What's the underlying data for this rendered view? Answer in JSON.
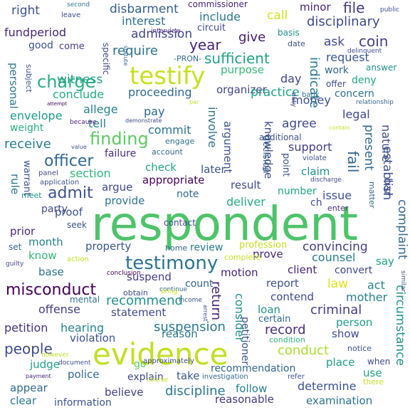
{
  "words": [
    {
      "text": "respondent",
      "color": "#4ec36a",
      "rotated": false
    },
    {
      "text": "evidence",
      "color": "#c2df23",
      "rotated": false
    },
    {
      "text": "testify",
      "color": "#c8e020",
      "rotated": false
    },
    {
      "text": "testimony",
      "color": "#2c728e",
      "rotated": false
    },
    {
      "text": "charge",
      "color": "#28ae80",
      "rotated": false
    },
    {
      "text": "finding",
      "color": "#5ec962",
      "rotated": false
    },
    {
      "text": "admit",
      "color": "#3b528b",
      "rotated": false
    },
    {
      "text": "officer",
      "color": "#31688e",
      "rotated": false
    },
    {
      "text": "misconduct",
      "color": "#440154",
      "rotated": false
    },
    {
      "text": "people",
      "color": "#3e4a89",
      "rotated": false
    },
    {
      "text": "petition",
      "color": "#46327e",
      "rotated": false
    },
    {
      "text": "hearing",
      "color": "#25848e",
      "rotated": false
    },
    {
      "text": "suspension",
      "color": "#2a788e",
      "rotated": false
    },
    {
      "text": "conduct",
      "color": "#addc30",
      "rotated": false
    },
    {
      "text": "recommend",
      "color": "#21918c",
      "rotated": false
    },
    {
      "text": "record",
      "color": "#472d7b",
      "rotated": false
    },
    {
      "text": "discipline",
      "color": "#2a788e",
      "rotated": false
    },
    {
      "text": "recommendation",
      "color": "#31688e",
      "rotated": false
    },
    {
      "text": "determine",
      "color": "#3b528b",
      "rotated": false
    },
    {
      "text": "criminal",
      "color": "#433e85",
      "rotated": false
    },
    {
      "text": "disbarment",
      "color": "#355f8d",
      "rotated": false
    },
    {
      "text": "disciplinary",
      "color": "#3e4a89",
      "rotated": false
    },
    {
      "text": "interest",
      "color": "#2c728e",
      "rotated": false
    },
    {
      "text": "include",
      "color": "#2a788e",
      "rotated": false
    },
    {
      "text": "file",
      "color": "#443a83",
      "rotated": false
    },
    {
      "text": "minor",
      "color": "#482576",
      "rotated": false
    },
    {
      "text": "right",
      "color": "#3b528b",
      "rotated": false
    },
    {
      "text": "call",
      "color": "#d2e21b",
      "rotated": false
    },
    {
      "text": "commissioner",
      "color": "#482173",
      "rotated": false
    },
    {
      "text": "fundperiod",
      "color": "#482576",
      "rotated": false
    },
    {
      "text": "admission",
      "color": "#404688",
      "rotated": false
    },
    {
      "text": "give",
      "color": "#481a6c",
      "rotated": false
    },
    {
      "text": "coin",
      "color": "#433e85",
      "rotated": false
    },
    {
      "text": "ask",
      "color": "#3e4a89",
      "rotated": false
    },
    {
      "text": "basis",
      "color": "#21918c",
      "rotated": false
    },
    {
      "text": "year",
      "color": "#482475",
      "rotated": false
    },
    {
      "text": "require",
      "color": "#2c728e",
      "rotated": false
    },
    {
      "text": "sufficient",
      "color": "#20a386",
      "rotated": false
    },
    {
      "text": "request",
      "color": "#39568c",
      "rotated": false
    },
    {
      "text": "purpose",
      "color": "#37b878",
      "rotated": false
    },
    {
      "text": "witness",
      "color": "#1fa187",
      "rotated": false
    },
    {
      "text": "conclude",
      "color": "#25ac82",
      "rotated": false
    },
    {
      "text": "proceeding",
      "color": "#31688e",
      "rotated": false
    },
    {
      "text": "organizer",
      "color": "#404688",
      "rotated": false
    },
    {
      "text": "concern",
      "color": "#2c728e",
      "rotated": false
    },
    {
      "text": "practice",
      "color": "#20a386",
      "rotated": false
    },
    {
      "text": "money",
      "color": "#3b528b",
      "rotated": false
    },
    {
      "text": "envelope",
      "color": "#1e9b8a",
      "rotated": false
    },
    {
      "text": "weight",
      "color": "#29af7f",
      "rotated": false
    },
    {
      "text": "allege",
      "color": "#26828e",
      "rotated": false
    },
    {
      "text": "pay",
      "color": "#31688e",
      "rotated": false
    },
    {
      "text": "tell",
      "color": "#26828e",
      "rotated": false
    },
    {
      "text": "agree",
      "color": "#3e4a89",
      "rotated": false
    },
    {
      "text": "legal",
      "color": "#3f4788",
      "rotated": false
    },
    {
      "text": "receive",
      "color": "#287d8e",
      "rotated": false
    },
    {
      "text": "commit",
      "color": "#2c728e",
      "rotated": false
    },
    {
      "text": "support",
      "color": "#433d84",
      "rotated": false
    },
    {
      "text": "section",
      "color": "#2fb47c",
      "rotated": false
    },
    {
      "text": "failure",
      "color": "#472d7b",
      "rotated": false
    },
    {
      "text": "check",
      "color": "#21a685",
      "rotated": false
    },
    {
      "text": "later",
      "color": "#3b528b",
      "rotated": false
    },
    {
      "text": "claim",
      "color": "#21918c",
      "rotated": false
    },
    {
      "text": "argue",
      "color": "#3e4a89",
      "rotated": false
    },
    {
      "text": "appropriate",
      "color": "#440154",
      "rotated": false
    },
    {
      "text": "result",
      "color": "#3e4a89",
      "rotated": false
    },
    {
      "text": "number",
      "color": "#22a884",
      "rotated": false
    },
    {
      "text": "issue",
      "color": "#3b528b",
      "rotated": false
    },
    {
      "text": "party",
      "color": "#3e4a89",
      "rotated": false
    },
    {
      "text": "provide",
      "color": "#2c728e",
      "rotated": false
    },
    {
      "text": "deliver",
      "color": "#25ab82",
      "rotated": false
    },
    {
      "text": "note",
      "color": "#31688e",
      "rotated": false
    },
    {
      "text": "proof",
      "color": "#3b528b",
      "rotated": false
    },
    {
      "text": "prior",
      "color": "#482878",
      "rotated": false
    },
    {
      "text": "month",
      "color": "#26828e",
      "rotated": false
    },
    {
      "text": "property",
      "color": "#39568c",
      "rotated": false
    },
    {
      "text": "review",
      "color": "#2a788e",
      "rotated": false
    },
    {
      "text": "convincing",
      "color": "#433e85",
      "rotated": false
    },
    {
      "text": "counsel",
      "color": "#287d8e",
      "rotated": false
    },
    {
      "text": "prove",
      "color": "#482576",
      "rotated": false
    },
    {
      "text": "know",
      "color": "#35b779",
      "rotated": false
    },
    {
      "text": "base",
      "color": "#2c728e",
      "rotated": false
    },
    {
      "text": "motion",
      "color": "#482576",
      "rotated": false
    },
    {
      "text": "client",
      "color": "#482173",
      "rotated": false
    },
    {
      "text": "convert",
      "color": "#3e4989",
      "rotated": false
    },
    {
      "text": "say",
      "color": "#1fa088",
      "rotated": false
    },
    {
      "text": "suspend",
      "color": "#443983",
      "rotated": false
    },
    {
      "text": "report",
      "color": "#3b528b",
      "rotated": false
    },
    {
      "text": "law",
      "color": "#dde318",
      "rotated": false
    },
    {
      "text": "act",
      "color": "#26828e",
      "rotated": false
    },
    {
      "text": "contend",
      "color": "#3e4a89",
      "rotated": false
    },
    {
      "text": "mother",
      "color": "#25838e",
      "rotated": false
    },
    {
      "text": "offense",
      "color": "#433e85",
      "rotated": false
    },
    {
      "text": "statement",
      "color": "#3f4788",
      "rotated": false
    },
    {
      "text": "loan",
      "color": "#21918c",
      "rotated": false
    },
    {
      "text": "reason",
      "color": "#2a788e",
      "rotated": false
    },
    {
      "text": "person",
      "color": "#1f9e89",
      "rotated": false
    },
    {
      "text": "show",
      "color": "#3e4a89",
      "rotated": false
    },
    {
      "text": "violation",
      "color": "#3b528b",
      "rotated": false
    },
    {
      "text": "judge",
      "color": "#1fa088",
      "rotated": false
    },
    {
      "text": "police",
      "color": "#31688e",
      "rotated": false
    },
    {
      "text": "place",
      "color": "#1e9b8a",
      "rotated": false
    },
    {
      "text": "use",
      "color": "#1fa187",
      "rotated": false
    },
    {
      "text": "explain",
      "color": "#3e4a89",
      "rotated": false
    },
    {
      "text": "take",
      "color": "#38588c",
      "rotated": false
    },
    {
      "text": "believe",
      "color": "#433e85",
      "rotated": false
    },
    {
      "text": "appear",
      "color": "#31688e",
      "rotated": false
    },
    {
      "text": "follow",
      "color": "#287d8e",
      "rotated": false
    },
    {
      "text": "reasonable",
      "color": "#443983",
      "rotated": false
    },
    {
      "text": "clear",
      "color": "#2a788e",
      "rotated": false
    },
    {
      "text": "information",
      "color": "#3b528b",
      "rotated": false
    },
    {
      "text": "examination",
      "color": "#2c728e",
      "rotated": false
    },
    {
      "text": "go",
      "color": "#5ec962",
      "rotated": false
    },
    {
      "text": "count",
      "color": "#34618d",
      "rotated": false
    },
    {
      "text": "day",
      "color": "#404688",
      "rotated": false
    },
    {
      "text": "work",
      "color": "#31688e",
      "rotated": false
    },
    {
      "text": "deny",
      "color": "#20a386",
      "rotated": false
    },
    {
      "text": "good",
      "color": "#3b528b",
      "rotated": false
    },
    {
      "text": "come",
      "color": "#433e85",
      "rotated": false
    },
    {
      "text": "circuit",
      "color": "#3e4a89",
      "rotated": false
    },
    {
      "text": "-PRON-",
      "color": "#31688e",
      "rotated": false
    },
    {
      "text": "interview",
      "color": "#482173",
      "rotated": false
    },
    {
      "text": "date",
      "color": "#3b528b",
      "rotated": false
    },
    {
      "text": "answer",
      "color": "#21918c",
      "rotated": false
    },
    {
      "text": "offer",
      "color": "#3e4a89",
      "rotated": false
    },
    {
      "text": "bank",
      "color": "#2c728e",
      "rotated": false
    },
    {
      "text": "additional",
      "color": "#3b528b",
      "rotated": false
    },
    {
      "text": "ch",
      "color": "#3e4a89",
      "rotated": false
    },
    {
      "text": "enter",
      "color": "#472d7b",
      "rotated": false
    },
    {
      "text": "certain",
      "color": "#31688e",
      "rotated": false
    },
    {
      "text": "condition",
      "color": "#35b779",
      "rotated": false
    },
    {
      "text": "notice",
      "color": "#3b528b",
      "rotated": false
    },
    {
      "text": "when",
      "color": "#3e4a89",
      "rotated": false
    },
    {
      "text": "there",
      "color": "#c2df23",
      "rotated": false
    },
    {
      "text": "contact",
      "color": "#3e4a89",
      "rotated": false
    },
    {
      "text": "home",
      "color": "#31688e",
      "rotated": false
    },
    {
      "text": "profession",
      "color": "#c2df23",
      "rotated": false
    },
    {
      "text": "complete",
      "color": "#c8e020",
      "rotated": false
    },
    {
      "text": "seek",
      "color": "#3b528b",
      "rotated": false
    },
    {
      "text": "set",
      "color": "#31688e",
      "rotated": false
    },
    {
      "text": "meet",
      "color": "#21918c",
      "rotated": false
    },
    {
      "text": "panel",
      "color": "#3e4a89",
      "rotated": false
    },
    {
      "text": "application",
      "color": "#3b528b",
      "rotated": false
    },
    {
      "text": "engage",
      "color": "#2c728e",
      "rotated": false
    },
    {
      "text": "account",
      "color": "#31688e",
      "rotated": false
    },
    {
      "text": "demonstrate",
      "color": "#3e4a89",
      "rotated": false
    },
    {
      "text": "because",
      "color": "#482173",
      "rotated": false
    },
    {
      "text": "value",
      "color": "#3b528b",
      "rotated": false
    },
    {
      "text": "attempt",
      "color": "#440154",
      "rotated": false
    },
    {
      "text": "leave",
      "color": "#3e4a89",
      "rotated": false
    },
    {
      "text": "second",
      "color": "#2a788e",
      "rotated": false
    },
    {
      "text": "public",
      "color": "#3b528b",
      "rotated": false
    },
    {
      "text": "delinquent",
      "color": "#3e4a89",
      "rotated": false
    },
    {
      "text": "relationship",
      "color": "#31688e",
      "rotated": false
    },
    {
      "text": "violate",
      "color": "#3b528b",
      "rotated": false
    },
    {
      "text": "discharge",
      "color": "#3e4a89",
      "rotated": false
    },
    {
      "text": "contain",
      "color": "#c2df23",
      "rotated": false
    },
    {
      "text": "conclusion",
      "color": "#440154",
      "rotated": false
    },
    {
      "text": "obtain",
      "color": "#3e4a89",
      "rotated": false
    },
    {
      "text": "continue",
      "color": "#31688e",
      "rotated": false
    },
    {
      "text": "bring",
      "color": "#c8e020",
      "rotated": false
    },
    {
      "text": "income",
      "color": "#3b528b",
      "rotated": false
    },
    {
      "text": "action",
      "color": "#c2df23",
      "rotated": false
    },
    {
      "text": "mental",
      "color": "#2c728e",
      "rotated": false
    },
    {
      "text": "guilty",
      "color": "#3e4a89",
      "rotated": false
    },
    {
      "text": "however",
      "color": "#c2df23",
      "rotated": false
    },
    {
      "text": "document",
      "color": "#3b528b",
      "rotated": false
    },
    {
      "text": "payment",
      "color": "#482173",
      "rotated": false
    },
    {
      "text": "course",
      "color": "#c8e020",
      "rotated": false
    },
    {
      "text": "approximately",
      "color": "#3e4a89",
      "rotated": false
    },
    {
      "text": "investigation",
      "color": "#31688e",
      "rotated": false
    },
    {
      "text": "refer",
      "color": "#3b528b",
      "rotated": false
    },
    {
      "text": "par",
      "color": "#c2df23",
      "rotated": false
    },
    {
      "text": "personal",
      "color": "#2a788e",
      "rotated": false
    },
    {
      "text": "subject",
      "color": "#3b528b",
      "rotated": false
    },
    {
      "text": "specific",
      "color": "#3e4a89",
      "rotated": false
    },
    {
      "text": "statute",
      "color": "#31688e",
      "rotated": false
    },
    {
      "text": "involve",
      "color": "#2c728e",
      "rotated": false
    },
    {
      "text": "argument",
      "color": "#3b528b",
      "rotated": false
    },
    {
      "text": "decision",
      "color": "#31688e",
      "rotated": false
    },
    {
      "text": "knowledge",
      "color": "#3e4a89",
      "rotated": false
    },
    {
      "text": "indicate",
      "color": "#2a788e",
      "rotated": false
    },
    {
      "text": "present",
      "color": "#31688e",
      "rotated": false
    },
    {
      "text": "nature",
      "color": "#3e4a89",
      "rotated": false
    },
    {
      "text": "fail",
      "color": "#31688e",
      "rotated": false
    },
    {
      "text": "establish",
      "color": "#3b528b",
      "rotated": false
    },
    {
      "text": "complaint",
      "color": "#31688e",
      "rotated": false
    },
    {
      "text": "bar",
      "color": "#3e4a89",
      "rotated": false
    },
    {
      "text": "point",
      "color": "#3b528b",
      "rotated": false
    },
    {
      "text": "matter",
      "color": "#31688e",
      "rotated": false
    },
    {
      "text": "duty",
      "color": "#3e4a89",
      "rotated": false
    },
    {
      "text": "warrant",
      "color": "#3b528b",
      "rotated": false
    },
    {
      "text": "rule",
      "color": "#2c728e",
      "rotated": false
    },
    {
      "text": "consider",
      "color": "#21918c",
      "rotated": false
    },
    {
      "text": "return",
      "color": "#482173",
      "rotated": false
    },
    {
      "text": "petitioner",
      "color": "#3b528b",
      "rotated": false
    },
    {
      "text": "circumstance",
      "color": "#21918c",
      "rotated": false
    },
    {
      "text": "arrest",
      "color": "#3e4a89",
      "rotated": false
    },
    {
      "text": "similar",
      "color": "#3b528b",
      "rotated": false
    }
  ]
}
